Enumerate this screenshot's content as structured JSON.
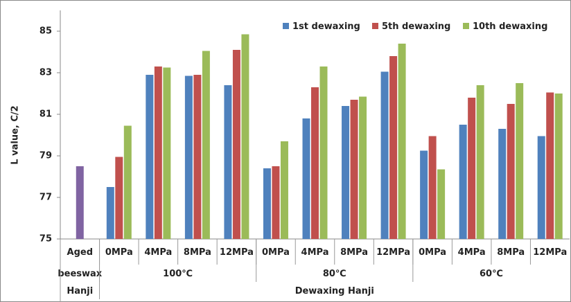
{
  "chart_data": {
    "type": "bar",
    "y_label": "L value, C/2",
    "category_levels": [
      [
        "Aged",
        "0MPa",
        "4MPa",
        "8MPa",
        "12MPa",
        "0MPa",
        "4MPa",
        "8MPa",
        "12MPa",
        "0MPa",
        "4MPa",
        "8MPa",
        "12MPa"
      ],
      [
        "beeswax",
        "100℃",
        "100℃",
        "100℃",
        "100℃",
        "80℃",
        "80℃",
        "80℃",
        "80℃",
        "60℃",
        "60℃",
        "60℃",
        "60℃"
      ],
      [
        "Hanji",
        "Dewaxing Hanji",
        "Dewaxing Hanji",
        "Dewaxing Hanji",
        "Dewaxing Hanji",
        "Dewaxing Hanji",
        "Dewaxing Hanji",
        "Dewaxing Hanji",
        "Dewaxing Hanji",
        "Dewaxing Hanji",
        "Dewaxing Hanji",
        "Dewaxing Hanji",
        "Dewaxing Hanji"
      ]
    ],
    "single_bar": {
      "color": "#8064a2",
      "values": [
        78.5,
        null,
        null,
        null,
        null,
        null,
        null,
        null,
        null,
        null,
        null,
        null,
        null
      ]
    },
    "series": [
      {
        "name": "1st dewaxing",
        "color": "#4f81bd",
        "values": [
          null,
          77.5,
          82.9,
          82.85,
          82.4,
          78.4,
          80.8,
          81.4,
          83.05,
          79.25,
          80.5,
          80.3,
          79.95
        ]
      },
      {
        "name": "5th dewaxing",
        "color": "#c0504d",
        "values": [
          null,
          78.95,
          83.3,
          82.9,
          84.1,
          78.5,
          82.3,
          81.7,
          83.8,
          79.95,
          81.8,
          81.5,
          82.05
        ]
      },
      {
        "name": "10th dewaxing",
        "color": "#9bbb59",
        "values": [
          null,
          80.45,
          83.25,
          84.05,
          84.85,
          79.7,
          83.3,
          81.85,
          84.4,
          78.35,
          82.4,
          82.5,
          82.0
        ]
      }
    ],
    "ylim": [
      75,
      86
    ],
    "yticks": [
      75,
      77,
      79,
      81,
      83,
      85
    ],
    "grid": false,
    "legend": "top-right"
  }
}
